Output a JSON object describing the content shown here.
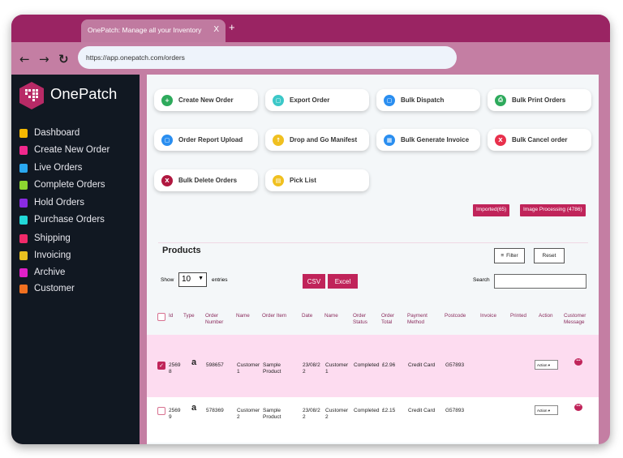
{
  "browser": {
    "tab_title": "OnePatch: Manage all your Inventory",
    "tab_close": "X",
    "new_tab": "+",
    "back": "←",
    "forward": "→",
    "reload": "↻",
    "url": "https://app.onepatch.com/orders"
  },
  "sidebar": {
    "brand": "OnePatch",
    "items": [
      {
        "label": "Dashboard",
        "color": "#f5b800"
      },
      {
        "label": "Create New Order",
        "color": "#f0288c"
      },
      {
        "label": "Live Orders",
        "color": "#2aa8f0"
      },
      {
        "label": "Complete Orders",
        "color": "#8cd630"
      },
      {
        "label": "Hold Orders",
        "color": "#8a2be2"
      },
      {
        "label": "Purchase Orders",
        "color": "#22d8d8"
      },
      {
        "label": "Shipping",
        "color": "#f02a6a"
      },
      {
        "label": "Invoicing",
        "color": "#e8c020"
      },
      {
        "label": "Archive",
        "color": "#e020c8"
      },
      {
        "label": "Customer",
        "color": "#f07020"
      }
    ]
  },
  "actions": [
    {
      "label": "Create New Order",
      "icon": "plus-icon",
      "glyph": "+",
      "color": "#2eaa5c"
    },
    {
      "label": "Export Order",
      "icon": "export-icon",
      "glyph": "▢",
      "color": "#3cc8c8"
    },
    {
      "label": "Bulk Dispatch",
      "icon": "dispatch-icon",
      "glyph": "▢",
      "color": "#2a8ef0"
    },
    {
      "label": "Bulk Print Orders",
      "icon": "print-icon",
      "glyph": "⎙",
      "color": "#2eaa5c"
    },
    {
      "label": "Order Report Upload",
      "icon": "upload-icon",
      "glyph": "▢",
      "color": "#2a8ef0"
    },
    {
      "label": "Drop and Go Manifest",
      "icon": "manifest-icon",
      "glyph": "↑",
      "color": "#f0c020"
    },
    {
      "label": "Bulk Generate Invoice",
      "icon": "invoice-icon",
      "glyph": "▦",
      "color": "#2a8ef0"
    },
    {
      "label": "Bulk Cancel order",
      "icon": "cancel-icon",
      "glyph": "X",
      "color": "#e8304c"
    },
    {
      "label": "Bulk Delete Orders",
      "icon": "delete-icon",
      "glyph": "X",
      "color": "#b01840"
    },
    {
      "label": "Pick List",
      "icon": "picklist-icon",
      "glyph": "▤",
      "color": "#f0c020"
    }
  ],
  "badges": {
    "imported": "Imported(65)",
    "image_processing": "Image Processing (4786)"
  },
  "products": {
    "title": "Products",
    "filter": "Filter",
    "reset": "Reset",
    "show": "Show",
    "entries_value": "10",
    "entries": "entries",
    "csv": "CSV",
    "excel": "Excel",
    "search": "Search",
    "search_value": ""
  },
  "table": {
    "headers": [
      "Id",
      "Type",
      "Order Number",
      "Name",
      "Order Item",
      "Date",
      "Name",
      "Order Status",
      "Order Total",
      "Payment Method",
      "Postcode",
      "Invoice",
      "Printed",
      "Action",
      "Customer Message"
    ],
    "rows": [
      {
        "checked": true,
        "id": "25698",
        "type": "a",
        "order_number": "598657",
        "name": "Customer 1",
        "item": "Sample Product",
        "date": "23/08/22",
        "name2": "Customer 1",
        "status": "Completed",
        "total": "£2.96",
        "payment": "Credit Card",
        "postcode": "G57893",
        "action": "Action"
      },
      {
        "checked": false,
        "id": "25699",
        "type": "a",
        "order_number": "578369",
        "name": "Customer 2",
        "item": "Sample Product",
        "date": "23/08/22",
        "name2": "Customer 2",
        "status": "Completed",
        "total": "£2.15",
        "payment": "Credit Card",
        "postcode": "G57893",
        "action": "Action"
      }
    ]
  }
}
